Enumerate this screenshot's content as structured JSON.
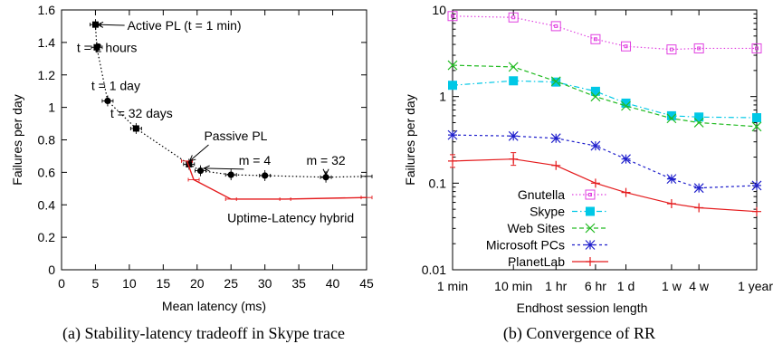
{
  "chart_data": [
    {
      "type": "scatter",
      "caption": "(a) Stability-latency tradeoff in Skype trace",
      "xlabel": "Mean latency (ms)",
      "ylabel": "Failures per day",
      "xlim": [
        0,
        45
      ],
      "ylim": [
        0,
        1.6
      ],
      "xticks": [
        "0",
        "5",
        "10",
        "15",
        "20",
        "25",
        "30",
        "35",
        "40",
        "45"
      ],
      "yticks": [
        "0",
        "0.2",
        "0.4",
        "0.6",
        "0.8",
        "1",
        "1.2",
        "1.4",
        "1.6"
      ],
      "series": [
        {
          "style": "dotted-black-markers",
          "color": "#000000",
          "points": [
            {
              "x": 5,
              "y": 1.51,
              "marker": "square"
            },
            {
              "x": 5.2,
              "y": 1.37,
              "marker": "square"
            },
            {
              "x": 6.8,
              "y": 1.04,
              "marker": "circle"
            },
            {
              "x": 11,
              "y": 0.87,
              "marker": "square"
            },
            {
              "x": 18.8,
              "y": 0.65,
              "marker": "square"
            },
            {
              "x": 20.5,
              "y": 0.61,
              "marker": "circle"
            },
            {
              "x": 25,
              "y": 0.585,
              "marker": "circle"
            },
            {
              "x": 30,
              "y": 0.58,
              "marker": "circle"
            },
            {
              "x": 39,
              "y": 0.57,
              "marker": "circle"
            },
            {
              "x": 45,
              "y": 0.575,
              "marker": "none"
            }
          ]
        },
        {
          "name": "Uptime-Latency hybrid",
          "style": "solid-red",
          "color": "#e41a1c",
          "points": [
            {
              "x": 18.5,
              "y": 0.67
            },
            {
              "x": 19.5,
              "y": 0.555
            },
            {
              "x": 25,
              "y": 0.435
            },
            {
              "x": 33,
              "y": 0.435
            },
            {
              "x": 45,
              "y": 0.445
            }
          ]
        }
      ],
      "annotations": [
        {
          "text": "Active PL (t = 1 min)",
          "text_x": 9.7,
          "text_y": 1.505,
          "arrow_to": [
            5.3,
            1.51
          ]
        },
        {
          "text": "t = 2 hours",
          "text_x": 6.7,
          "text_y": 1.37
        },
        {
          "text": "t = 1 day",
          "text_x": 8.0,
          "text_y": 1.135
        },
        {
          "text": "t = 32 days",
          "text_x": 11.8,
          "text_y": 0.965
        },
        {
          "text": "Passive PL",
          "text_x": 25.7,
          "text_y": 0.825,
          "arrow_to": [
            18.9,
            0.67
          ]
        },
        {
          "text": "m = 4",
          "text_x": 28.5,
          "text_y": 0.675,
          "arrow_to": [
            21.0,
            0.625
          ]
        },
        {
          "text": "m = 32",
          "text_x": 39,
          "text_y": 0.675,
          "arrow_to": [
            39,
            0.585
          ]
        },
        {
          "text": "Uptime-Latency hybrid",
          "text_x": 33.8,
          "text_y": 0.32,
          "color": "#e41a1c"
        }
      ]
    },
    {
      "type": "line",
      "caption": "(b) Convergence of RR",
      "xlabel": "Endhost session length",
      "ylabel": "Failures per day",
      "yscale": "log",
      "ylim": [
        0.01,
        10
      ],
      "yticks": [
        "10",
        "1",
        "0.1",
        "0.01"
      ],
      "categories": [
        "1 min",
        "10 min",
        "1 hr",
        "6 hr",
        "1 d",
        "1 w",
        "4 w",
        "1 year"
      ],
      "legend_position": "bottom-left",
      "series": [
        {
          "name": "Gnutella",
          "color": "#e040e0",
          "marker": "square-open",
          "dash": "dotted",
          "x": [
            0,
            1,
            1.7,
            2.35,
            2.85,
            3.6,
            4.05,
            5
          ],
          "values": [
            8.5,
            8.2,
            6.5,
            4.6,
            3.8,
            3.5,
            3.6,
            3.6
          ]
        },
        {
          "name": "Skype",
          "color": "#00c8e6",
          "marker": "square-filled",
          "dash": "dashdot",
          "x": [
            0,
            1,
            1.7,
            2.35,
            2.85,
            3.6,
            4.05,
            5
          ],
          "values": [
            1.35,
            1.52,
            1.47,
            1.15,
            0.84,
            0.6,
            0.58,
            0.57
          ]
        },
        {
          "name": "Web Sites",
          "color": "#22bb22",
          "marker": "x",
          "dash": "dashed",
          "x": [
            0,
            1,
            1.7,
            2.35,
            2.85,
            3.6,
            4.05,
            5
          ],
          "values": [
            2.3,
            2.2,
            1.5,
            1.0,
            0.78,
            0.56,
            0.5,
            0.45
          ]
        },
        {
          "name": "Microsoft PCs",
          "color": "#2020cc",
          "marker": "star",
          "dash": "shortdash",
          "x": [
            0,
            1,
            1.7,
            2.35,
            2.85,
            3.6,
            4.05,
            5
          ],
          "values": [
            0.36,
            0.35,
            0.33,
            0.27,
            0.19,
            0.112,
            0.088,
            0.094
          ]
        },
        {
          "name": "PlanetLab",
          "color": "#e41a1c",
          "marker": "plus",
          "dash": "solid",
          "x": [
            0,
            1,
            1.7,
            2.35,
            2.85,
            3.6,
            4.05,
            5
          ],
          "values": [
            0.18,
            0.19,
            0.16,
            0.1,
            0.078,
            0.058,
            0.052,
            0.047
          ]
        }
      ]
    }
  ]
}
